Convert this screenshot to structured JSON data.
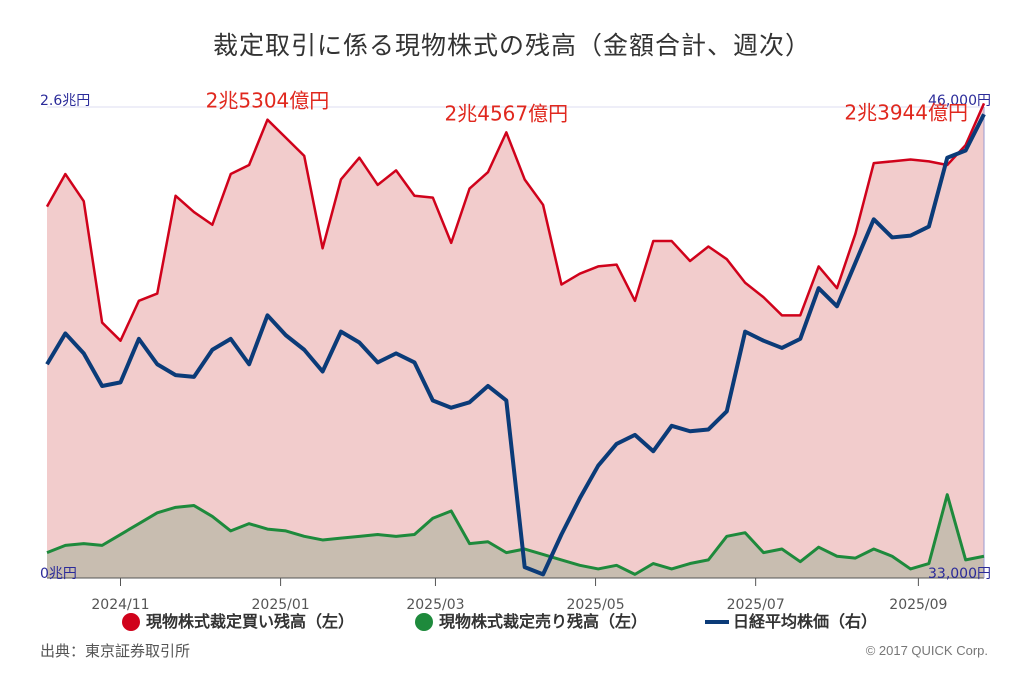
{
  "title": "裁定取引に係る現物株式の残高（金額合計、週次）",
  "source": "出典：東京証券取引所",
  "copyright": "© 2017 QUICK Corp.",
  "colors": {
    "buy": "#d0021b",
    "sell": "#1e8a3c",
    "nikkei": "#0b3b78",
    "buy_fill": "#f2cccc",
    "sell_fill": "#c8bdb0",
    "axis_text": "#2b2b9a",
    "annotation": "#e0281e"
  },
  "chart_data": {
    "type": "area",
    "title": "裁定取引に係る現物株式の残高（金額合計、週次）",
    "x_tick_labels": [
      "2024/11",
      "2025/01",
      "2025/03",
      "2025/05",
      "2025/07",
      "2025/09"
    ],
    "left_axis": {
      "top_label": "2.6兆円",
      "bottom_label": "0兆円",
      "ylim_trillion_yen": [
        0,
        2.6
      ]
    },
    "right_axis": {
      "top_label": "46,000円",
      "bottom_label": "33,000円",
      "ylim_yen": [
        33000,
        46000
      ]
    },
    "legend": {
      "buy": "現物株式裁定買い残高（左）",
      "sell": "現物株式裁定売り残高（左）",
      "nikkei": "日経平均株価（右）"
    },
    "legend_position": "bottom",
    "annotations": [
      "2兆5304億円",
      "2兆4567億円",
      "2兆3944億円"
    ],
    "x_weeks": [
      "2024-10-04",
      "2024-10-11",
      "2024-10-18",
      "2024-10-25",
      "2024-11-01",
      "2024-11-08",
      "2024-11-15",
      "2024-11-22",
      "2024-11-29",
      "2024-12-06",
      "2024-12-13",
      "2024-12-20",
      "2024-12-27",
      "2025-01-03",
      "2025-01-10",
      "2025-01-17",
      "2025-01-24",
      "2025-01-31",
      "2025-02-07",
      "2025-02-14",
      "2025-02-21",
      "2025-02-28",
      "2025-03-07",
      "2025-03-14",
      "2025-03-21",
      "2025-03-28",
      "2025-04-04",
      "2025-04-11",
      "2025-04-18",
      "2025-04-25",
      "2025-05-02",
      "2025-05-09",
      "2025-05-16",
      "2025-05-23",
      "2025-05-30",
      "2025-06-06",
      "2025-06-13",
      "2025-06-20",
      "2025-06-27",
      "2025-07-04",
      "2025-07-11",
      "2025-07-18",
      "2025-07-25",
      "2025-08-01",
      "2025-08-08",
      "2025-08-15",
      "2025-08-22",
      "2025-08-29",
      "2025-09-05",
      "2025-09-12",
      "2025-09-19",
      "2025-09-26"
    ],
    "series": [
      {
        "name": "現物株式裁定買い残高（左）",
        "axis": "left",
        "unit": "兆円",
        "values": [
          2.05,
          2.23,
          2.08,
          1.41,
          1.31,
          1.53,
          1.57,
          2.11,
          2.02,
          1.95,
          2.23,
          2.28,
          2.53,
          2.43,
          2.33,
          1.82,
          2.2,
          2.32,
          2.17,
          2.25,
          2.11,
          2.1,
          1.85,
          2.15,
          2.24,
          2.46,
          2.2,
          2.06,
          1.62,
          1.68,
          1.72,
          1.73,
          1.53,
          1.86,
          1.86,
          1.75,
          1.83,
          1.76,
          1.63,
          1.55,
          1.45,
          1.45,
          1.72,
          1.6,
          1.9,
          2.29,
          2.3,
          2.31,
          2.3,
          2.28,
          2.39,
          2.62
        ]
      },
      {
        "name": "現物株式裁定売り残高（左）",
        "axis": "left",
        "unit": "兆円",
        "values": [
          0.14,
          0.18,
          0.19,
          0.18,
          0.24,
          0.3,
          0.36,
          0.39,
          0.4,
          0.34,
          0.26,
          0.3,
          0.27,
          0.26,
          0.23,
          0.21,
          0.22,
          0.23,
          0.24,
          0.23,
          0.24,
          0.33,
          0.37,
          0.19,
          0.2,
          0.14,
          0.16,
          0.13,
          0.1,
          0.07,
          0.05,
          0.07,
          0.02,
          0.08,
          0.05,
          0.08,
          0.1,
          0.23,
          0.25,
          0.14,
          0.16,
          0.09,
          0.17,
          0.12,
          0.11,
          0.16,
          0.12,
          0.05,
          0.08,
          0.46,
          0.1,
          0.12
        ]
      },
      {
        "name": "日経平均株価（右）",
        "axis": "right",
        "unit": "円",
        "values": [
          38900,
          39750,
          39200,
          38300,
          38400,
          39600,
          38900,
          38600,
          38550,
          39300,
          39600,
          38900,
          40250,
          39700,
          39300,
          38700,
          39800,
          39500,
          38950,
          39200,
          38950,
          37900,
          37700,
          37850,
          38300,
          37900,
          33300,
          33100,
          34200,
          35200,
          36100,
          36700,
          36950,
          36500,
          37200,
          37050,
          37100,
          37600,
          39800,
          39550,
          39350,
          39600,
          41000,
          40500,
          41700,
          42900,
          42400,
          42450,
          42700,
          44600,
          44800,
          45800
        ]
      }
    ]
  }
}
